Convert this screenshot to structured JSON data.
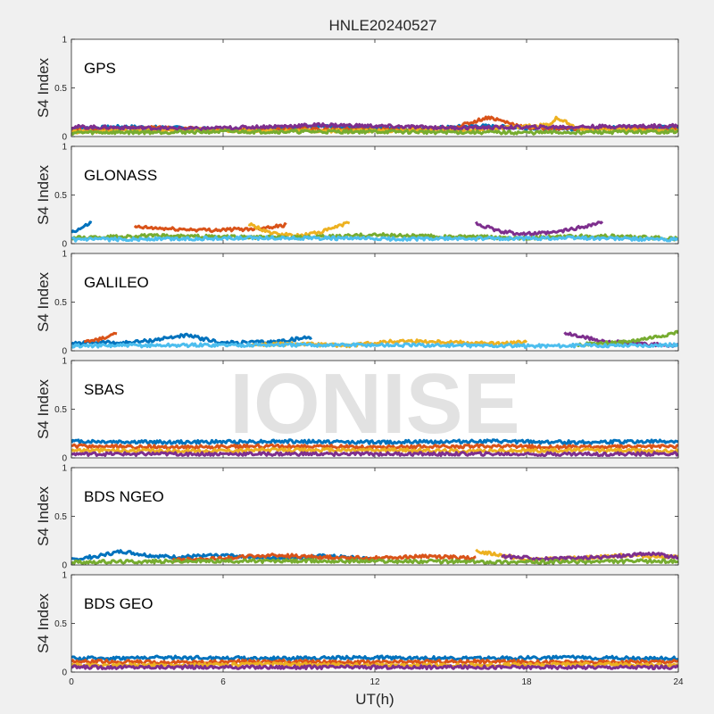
{
  "figure": {
    "title": "HNLE20240527",
    "watermark": "IONISE",
    "xlabel": "UT(h)",
    "ylabel": "S4 Index"
  },
  "colors": {
    "series": [
      "#0072BD",
      "#D95319",
      "#EDB120",
      "#7E2F8E",
      "#77AC30",
      "#4DBEEE",
      "#A2142F"
    ]
  },
  "chart_data": [
    {
      "type": "scatter",
      "title": "GPS",
      "xlim": [
        0,
        24
      ],
      "ylim": [
        0,
        1
      ],
      "xticks": [
        "0",
        "6",
        "12",
        "18",
        "24"
      ],
      "yticks": [
        "0",
        "0.5",
        "1"
      ],
      "series": [
        {
          "x": [
            0,
            2,
            4,
            6,
            8,
            10,
            12,
            14,
            16,
            18,
            20,
            22,
            24
          ],
          "y": [
            0.08,
            0.1,
            0.09,
            0.07,
            0.08,
            0.1,
            0.09,
            0.08,
            0.11,
            0.09,
            0.08,
            0.1,
            0.09
          ]
        },
        {
          "x": [
            0,
            3,
            6,
            9,
            12,
            15,
            16.5,
            18,
            21,
            24
          ],
          "y": [
            0.06,
            0.09,
            0.07,
            0.08,
            0.07,
            0.08,
            0.2,
            0.09,
            0.08,
            0.07
          ]
        },
        {
          "x": [
            0,
            4,
            8,
            12,
            16,
            19,
            19.2,
            20,
            24
          ],
          "y": [
            0.05,
            0.07,
            0.06,
            0.06,
            0.07,
            0.12,
            0.2,
            0.08,
            0.06
          ]
        },
        {
          "x": [
            0,
            5,
            10,
            15,
            20,
            24
          ],
          "y": [
            0.1,
            0.08,
            0.12,
            0.09,
            0.1,
            0.11
          ]
        },
        {
          "x": [
            0,
            6,
            12,
            18,
            24
          ],
          "y": [
            0.04,
            0.05,
            0.05,
            0.04,
            0.05
          ]
        }
      ]
    },
    {
      "type": "scatter",
      "title": "GLONASS",
      "xlim": [
        0,
        24
      ],
      "ylim": [
        0,
        1
      ],
      "xticks": [
        "0",
        "6",
        "12",
        "18",
        "24"
      ],
      "yticks": [
        "0",
        "0.5",
        "1"
      ],
      "series": [
        {
          "x": [
            0,
            0.4,
            0.8
          ],
          "y": [
            0.12,
            0.16,
            0.22
          ]
        },
        {
          "x": [
            2.5,
            4,
            5.5,
            7,
            8.5
          ],
          "y": [
            0.17,
            0.15,
            0.14,
            0.15,
            0.19
          ]
        },
        {
          "x": [
            7,
            8,
            9,
            10,
            11
          ],
          "y": [
            0.2,
            0.1,
            0.08,
            0.13,
            0.22
          ]
        },
        {
          "x": [
            16,
            17,
            18,
            19,
            20,
            21
          ],
          "y": [
            0.21,
            0.12,
            0.1,
            0.11,
            0.16,
            0.22
          ]
        },
        {
          "x": [
            0,
            3,
            6,
            9,
            12,
            15,
            18,
            21,
            24
          ],
          "y": [
            0.06,
            0.08,
            0.07,
            0.06,
            0.09,
            0.07,
            0.06,
            0.08,
            0.05
          ]
        },
        {
          "x": [
            0,
            4,
            8,
            12,
            16,
            20,
            24
          ],
          "y": [
            0.04,
            0.05,
            0.06,
            0.05,
            0.05,
            0.06,
            0.04
          ]
        }
      ]
    },
    {
      "type": "scatter",
      "title": "GALILEO",
      "xlim": [
        0,
        24
      ],
      "ylim": [
        0,
        1
      ],
      "xticks": [
        "0",
        "6",
        "12",
        "18",
        "24"
      ],
      "yticks": [
        "0",
        "0.5",
        "1"
      ],
      "series": [
        {
          "x": [
            0,
            1,
            2,
            3,
            4.5,
            6,
            8,
            9.5
          ],
          "y": [
            0.07,
            0.09,
            0.08,
            0.1,
            0.16,
            0.08,
            0.09,
            0.14
          ]
        },
        {
          "x": [
            0.5,
            1.2,
            1.8
          ],
          "y": [
            0.09,
            0.12,
            0.18
          ]
        },
        {
          "x": [
            7,
            9,
            11,
            12,
            13,
            15,
            17,
            18
          ],
          "y": [
            0.06,
            0.07,
            0.05,
            0.08,
            0.1,
            0.09,
            0.07,
            0.09
          ]
        },
        {
          "x": [
            19.5,
            21,
            22.5,
            24
          ],
          "y": [
            0.18,
            0.1,
            0.07,
            0.05
          ]
        },
        {
          "x": [
            20,
            22,
            23.3,
            24
          ],
          "y": [
            0.06,
            0.09,
            0.15,
            0.19
          ]
        },
        {
          "x": [
            0,
            6,
            12,
            18,
            24
          ],
          "y": [
            0.05,
            0.06,
            0.06,
            0.05,
            0.06
          ]
        }
      ]
    },
    {
      "type": "scatter",
      "title": "SBAS",
      "xlim": [
        0,
        24
      ],
      "ylim": [
        0,
        1
      ],
      "xticks": [
        "0",
        "6",
        "12",
        "18",
        "24"
      ],
      "yticks": [
        "0",
        "0.5",
        "1"
      ],
      "series": [
        {
          "x": [
            0,
            4,
            8,
            12,
            16,
            20,
            24
          ],
          "y": [
            0.17,
            0.16,
            0.17,
            0.16,
            0.17,
            0.16,
            0.17
          ]
        },
        {
          "x": [
            0,
            4,
            8,
            12,
            16,
            20,
            24
          ],
          "y": [
            0.12,
            0.11,
            0.12,
            0.11,
            0.12,
            0.11,
            0.12
          ]
        },
        {
          "x": [
            0,
            4,
            8,
            12,
            16,
            20,
            24
          ],
          "y": [
            0.08,
            0.07,
            0.08,
            0.08,
            0.07,
            0.08,
            0.07
          ]
        },
        {
          "x": [
            0,
            6,
            12,
            18,
            24
          ],
          "y": [
            0.04,
            0.04,
            0.04,
            0.04,
            0.04
          ]
        }
      ]
    },
    {
      "type": "scatter",
      "title": "BDS NGEO",
      "xlim": [
        0,
        24
      ],
      "ylim": [
        0,
        1
      ],
      "xticks": [
        "0",
        "6",
        "12",
        "18",
        "24"
      ],
      "yticks": [
        "0",
        "0.5",
        "1"
      ],
      "series": [
        {
          "x": [
            0,
            1,
            2,
            3,
            4,
            6,
            8,
            10,
            12
          ],
          "y": [
            0.05,
            0.09,
            0.14,
            0.1,
            0.08,
            0.1,
            0.07,
            0.09,
            0.06
          ]
        },
        {
          "x": [
            4,
            6,
            8,
            10,
            12,
            14,
            16
          ],
          "y": [
            0.05,
            0.07,
            0.1,
            0.08,
            0.07,
            0.09,
            0.07
          ]
        },
        {
          "x": [
            16,
            17,
            18,
            20,
            22,
            24
          ],
          "y": [
            0.14,
            0.1,
            0.05,
            0.07,
            0.1,
            0.08
          ]
        },
        {
          "x": [
            17,
            19,
            21,
            23,
            24
          ],
          "y": [
            0.09,
            0.06,
            0.08,
            0.12,
            0.07
          ]
        },
        {
          "x": [
            0,
            6,
            12,
            18,
            24
          ],
          "y": [
            0.03,
            0.04,
            0.04,
            0.03,
            0.04
          ]
        }
      ]
    },
    {
      "type": "scatter",
      "title": "BDS GEO",
      "xlim": [
        0,
        24
      ],
      "ylim": [
        0,
        1
      ],
      "xticks": [
        "0",
        "6",
        "12",
        "18",
        "24"
      ],
      "yticks": [
        "0",
        "0.5",
        "1"
      ],
      "series": [
        {
          "x": [
            0,
            4,
            8,
            12,
            16,
            20,
            24
          ],
          "y": [
            0.14,
            0.15,
            0.14,
            0.15,
            0.14,
            0.15,
            0.14
          ]
        },
        {
          "x": [
            0,
            4,
            8,
            12,
            16,
            20,
            24
          ],
          "y": [
            0.11,
            0.1,
            0.11,
            0.1,
            0.11,
            0.1,
            0.11
          ]
        },
        {
          "x": [
            0,
            4,
            8,
            12,
            16,
            20,
            24
          ],
          "y": [
            0.07,
            0.07,
            0.08,
            0.07,
            0.07,
            0.08,
            0.07
          ]
        },
        {
          "x": [
            0,
            4,
            8,
            12,
            16,
            20,
            24
          ],
          "y": [
            0.05,
            0.05,
            0.05,
            0.05,
            0.05,
            0.05,
            0.05
          ]
        }
      ]
    }
  ]
}
